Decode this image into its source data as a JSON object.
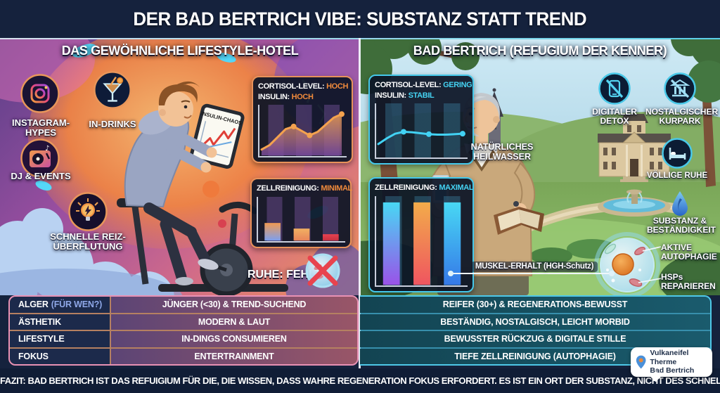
{
  "title": "DER BAD BERTRICH VIBE: SUBSTANZ STATT TREND",
  "left_panel": {
    "header": "DAS GEWÖHNLICHE LIFESTYLE-HOTEL",
    "features": [
      {
        "icon": "instagram-icon",
        "label": "INSTAGRAM-HYPES"
      },
      {
        "icon": "cocktail-icon",
        "label": "IN-DRINKS"
      },
      {
        "icon": "dj-turntable-icon",
        "label": "DJ & EVENTS"
      },
      {
        "icon": "lightbulb-icon",
        "label": "SCHNELLE REIZ-ÜBERFLUTUNG"
      }
    ],
    "tablet_label": "INSULIN-CHAOS",
    "stat_box_1": {
      "l1_label": "CORTISOL-LEVEL:",
      "l1_value": "HOCH",
      "l2_label": "INSULIN:",
      "l2_value": "HOCH"
    },
    "stat_box_2": {
      "label": "ZELLREINIGUNG:",
      "value": "MINIMAL"
    },
    "ruhe_label": "RUHE: FEHLT"
  },
  "right_panel": {
    "header": "BAD BERTRICH (REFUGIUM DER KENNER)",
    "stat_box_1": {
      "l1_label": "CORTISOL-LEVEL:",
      "l1_value": "GERING",
      "l2_label": "INSULIN:",
      "l2_value": "STABIL"
    },
    "stat_box_2": {
      "label": "ZELLREINIGUNG:",
      "value": "MAXIMAL"
    },
    "labels": {
      "heilwasser": "NATÜRLICHES HEILWASSER",
      "muskel": "MUSKEL-ERHALT (HGH-Schutz)",
      "autophagie": "AKTIVE AUTOPHAGIE",
      "hsps": "HSPs REPARIEREN"
    },
    "features": [
      {
        "icon": "phone-slash-icon",
        "label": "DIGITALER DETOX"
      },
      {
        "icon": "building-slash-icon",
        "label": "NOSTALGISCHER KURPARK"
      },
      {
        "icon": "bed-icon",
        "label": "VÖLLIGE RUHE"
      },
      {
        "icon": "water-drop-icon",
        "label": "SUBSTANZ & BESTÄNDIGKEIT"
      }
    ]
  },
  "comparison_table": {
    "rows": [
      {
        "label": "ALGER",
        "label_suffix": "(FÜR WEN?)",
        "left": "JÜNGER (<30) & TREND-SUCHEND",
        "right": "REIFER (30+) & REGENERATIONS-BEWUSST"
      },
      {
        "label": "ÄSTHETIK",
        "label_suffix": "",
        "left": "MODERN & LAUT",
        "right": "BESTÄNDIG, NOSTALGISCH, LEICHT MORBID"
      },
      {
        "label": "LIFESTYLE",
        "label_suffix": "",
        "left": "IN-DINGS CONSUMIEREN",
        "right": "BEWUSSTER RÜCKZUG & DIGITALE STILLE"
      },
      {
        "label": "FOKUS",
        "label_suffix": "",
        "left": "ENTERTRAINMENT",
        "right": "TIEFE ZELLREINIGUNG (AUTOPHAGIE)"
      }
    ]
  },
  "footer": "FAZIT: BAD BERTRICH IST DAS REFUIGIUM FÜR DIE, DIE WISSEN, DASS WAHRE REGENERATION FOKUS ERFORDERT. ES IST EIN ORT DER SUBSTANZ, NICHT DES SCHNELLEN TRENDS.",
  "badge": {
    "line1": "Vulkaneifel Therme",
    "line2": "Bad Bertrich"
  },
  "colors": {
    "accent_orange": "#f08a3c",
    "accent_cyan": "#45d2f2",
    "header_bg": "#15223d",
    "footer_bg": "#101d36",
    "left_box_border": "#e8925a",
    "right_box_border": "#45c8ea",
    "table_left_frame": "#e891b4",
    "table_right_frame": "#4ec8e8"
  },
  "chart_data": [
    {
      "id": "lifestyle-cortisol-insulin",
      "type": "line",
      "title": "Cortisol-Level: Hoch / Insulin: Hoch",
      "x": [
        0,
        1,
        2,
        3,
        4,
        5,
        6,
        7,
        8,
        9,
        10
      ],
      "y": [
        0.1,
        0.2,
        0.38,
        0.56,
        0.62,
        0.52,
        0.42,
        0.5,
        0.66,
        0.82,
        0.9
      ],
      "dots": [
        4,
        6,
        10
      ],
      "line_color": "#f4a24e",
      "fill_to": "#7a4aa0",
      "ylim": [
        0,
        1
      ]
    },
    {
      "id": "lifestyle-zellreinigung",
      "type": "bar",
      "title": "Zellreinigung: Minimal",
      "values": [
        0.44,
        0.3,
        0.16
      ],
      "colors": [
        [
          "#f09a52",
          "#7c9ff0"
        ],
        [
          "#f2b062",
          "#e8845a"
        ],
        [
          "#e84250",
          "#c83040"
        ]
      ],
      "ylim": [
        0,
        1
      ]
    },
    {
      "id": "badbertrich-cortisol-insulin",
      "type": "line",
      "title": "Cortisol-Level: Gering / Insulin: Stabil",
      "x": [
        0,
        1,
        2,
        3,
        4,
        5,
        6,
        7,
        8,
        9,
        10
      ],
      "y": [
        0.24,
        0.36,
        0.46,
        0.5,
        0.49,
        0.47,
        0.45,
        0.44,
        0.44,
        0.45,
        0.46
      ],
      "dots": [
        3,
        6,
        10
      ],
      "line_color": "#42d2f4",
      "fill_to": null,
      "ylim": [
        0,
        1
      ]
    },
    {
      "id": "badbertrich-zellreinigung",
      "type": "bar",
      "title": "Zellreinigung: Maximal",
      "values": [
        0.97,
        0.97,
        0.97
      ],
      "colors": [
        [
          "#48d8f4",
          "#9a52e8"
        ],
        [
          "#f2ac4a",
          "#ef5560"
        ],
        [
          "#48d8f4",
          "#3578e8"
        ]
      ],
      "ylim": [
        0,
        1
      ]
    }
  ]
}
